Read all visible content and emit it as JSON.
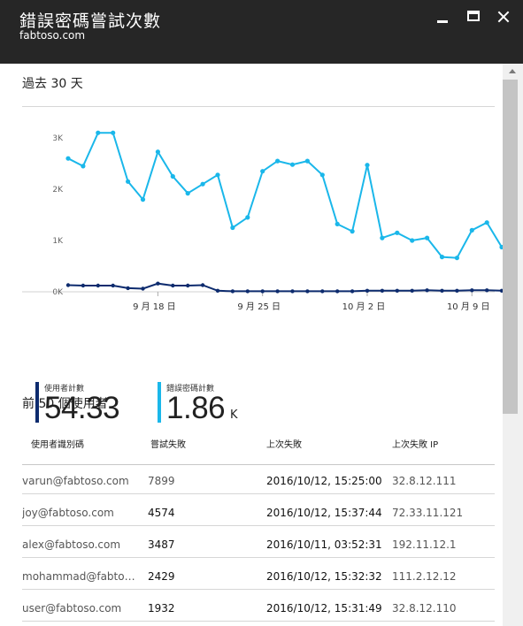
{
  "window": {
    "title": "錯誤密碼嘗試次數",
    "subtitle": "fabtoso.com"
  },
  "period_label": "過去 30 天",
  "chart_data": {
    "type": "line",
    "y_ticks": [
      "0K",
      "1K",
      "2K",
      "3K"
    ],
    "ylim": [
      0,
      3000
    ],
    "x_ticks": [
      {
        "day": 6,
        "label": "9 月 18 日"
      },
      {
        "day": 13,
        "label": "9 月 25 日"
      },
      {
        "day": 20,
        "label": "10 月 2 日"
      },
      {
        "day": 27,
        "label": "10 月 9 日"
      }
    ],
    "xlim": [
      0,
      28.5
    ],
    "series": [
      {
        "name": "錯誤密碼計數",
        "color": "#1ab7ea",
        "values": [
          2600,
          2450,
          3100,
          3100,
          2150,
          1800,
          2730,
          2250,
          1920,
          2100,
          2280,
          1250,
          1450,
          2350,
          2550,
          2480,
          2550,
          2280,
          1320,
          1180,
          2470,
          1050,
          1150,
          1000,
          1050,
          680,
          660,
          1200,
          1350,
          870
        ]
      },
      {
        "name": "使用者計數",
        "color": "#0d2b6e",
        "values": [
          130,
          120,
          120,
          120,
          70,
          60,
          160,
          120,
          120,
          130,
          20,
          10,
          10,
          10,
          10,
          10,
          10,
          10,
          10,
          10,
          20,
          20,
          20,
          20,
          30,
          20,
          20,
          30,
          30,
          20
        ]
      }
    ]
  },
  "kpis": [
    {
      "label": "使用者計數",
      "value": "54.33",
      "unit": "",
      "color": "#0d2b6e"
    },
    {
      "label": "錯誤密碼計數",
      "value": "1.86",
      "unit": "K",
      "color": "#1ab7ea"
    }
  ],
  "table": {
    "title": "前 50 個使用者",
    "headers": [
      "使用者識別碼",
      "嘗試失敗",
      "上次失敗",
      "上次失敗 IP"
    ],
    "rows": [
      [
        "varun@fabtoso.com",
        "7899",
        "2016/10/12, 15:25:00",
        "32.8.12.111"
      ],
      [
        "joy@fabtoso.com",
        "4574",
        "2016/10/12, 15:37:44",
        "72.33.11.121"
      ],
      [
        "alex@fabtoso.com",
        "3487",
        "2016/10/11, 03:52:31",
        "192.11.12.1"
      ],
      [
        "mohammad@fabto…",
        "2429",
        "2016/10/12, 15:32:32",
        "111.2.12.12"
      ],
      [
        "user@fabtoso.com",
        "1932",
        "2016/10/12, 15:31:49",
        "32.8.12.110"
      ]
    ]
  },
  "icons": {
    "minimize": "minimize-icon",
    "maximize": "maximize-icon",
    "close": "close-icon"
  }
}
